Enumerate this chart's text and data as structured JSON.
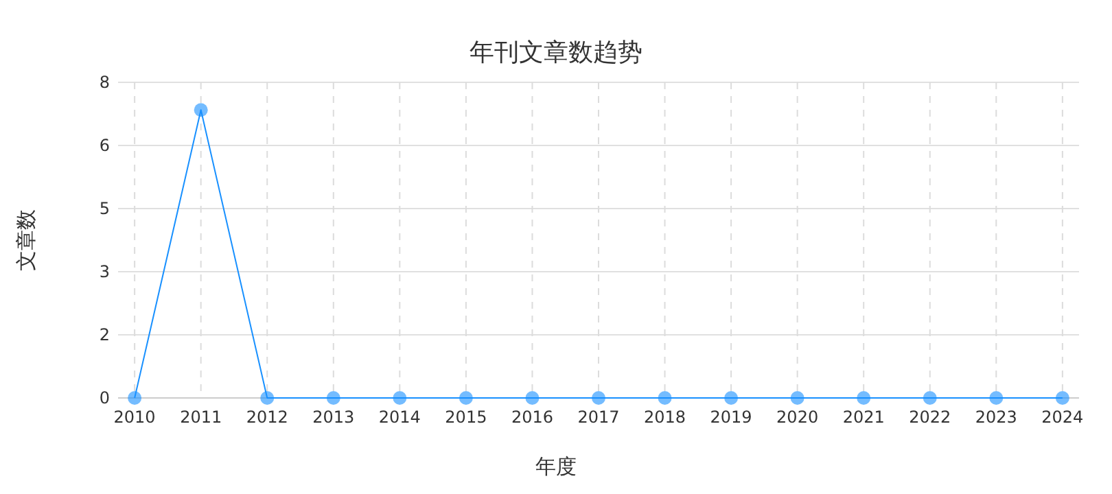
{
  "chart_data": {
    "type": "line",
    "title": "年刊文章数趋势",
    "xlabel": "年度",
    "ylabel": "文章数",
    "categories": [
      "2010",
      "2011",
      "2012",
      "2013",
      "2014",
      "2015",
      "2016",
      "2017",
      "2018",
      "2019",
      "2020",
      "2021",
      "2022",
      "2023",
      "2024"
    ],
    "series": [
      {
        "color": "#1890ff",
        "values": [
          0,
          7.3,
          0,
          0,
          0,
          0,
          0,
          0,
          0,
          0,
          0,
          0,
          0,
          0,
          0
        ]
      }
    ],
    "ylim": [
      0,
      8
    ],
    "yticks": [
      0,
      {
        "value": 1.6,
        "label": "2"
      },
      {
        "value": 3.2,
        "label": "3"
      },
      {
        "value": 4.8,
        "label": "5"
      },
      {
        "value": 6.4,
        "label": "6"
      },
      8
    ],
    "grid": true,
    "marker": "circle",
    "line_style": "solid"
  }
}
